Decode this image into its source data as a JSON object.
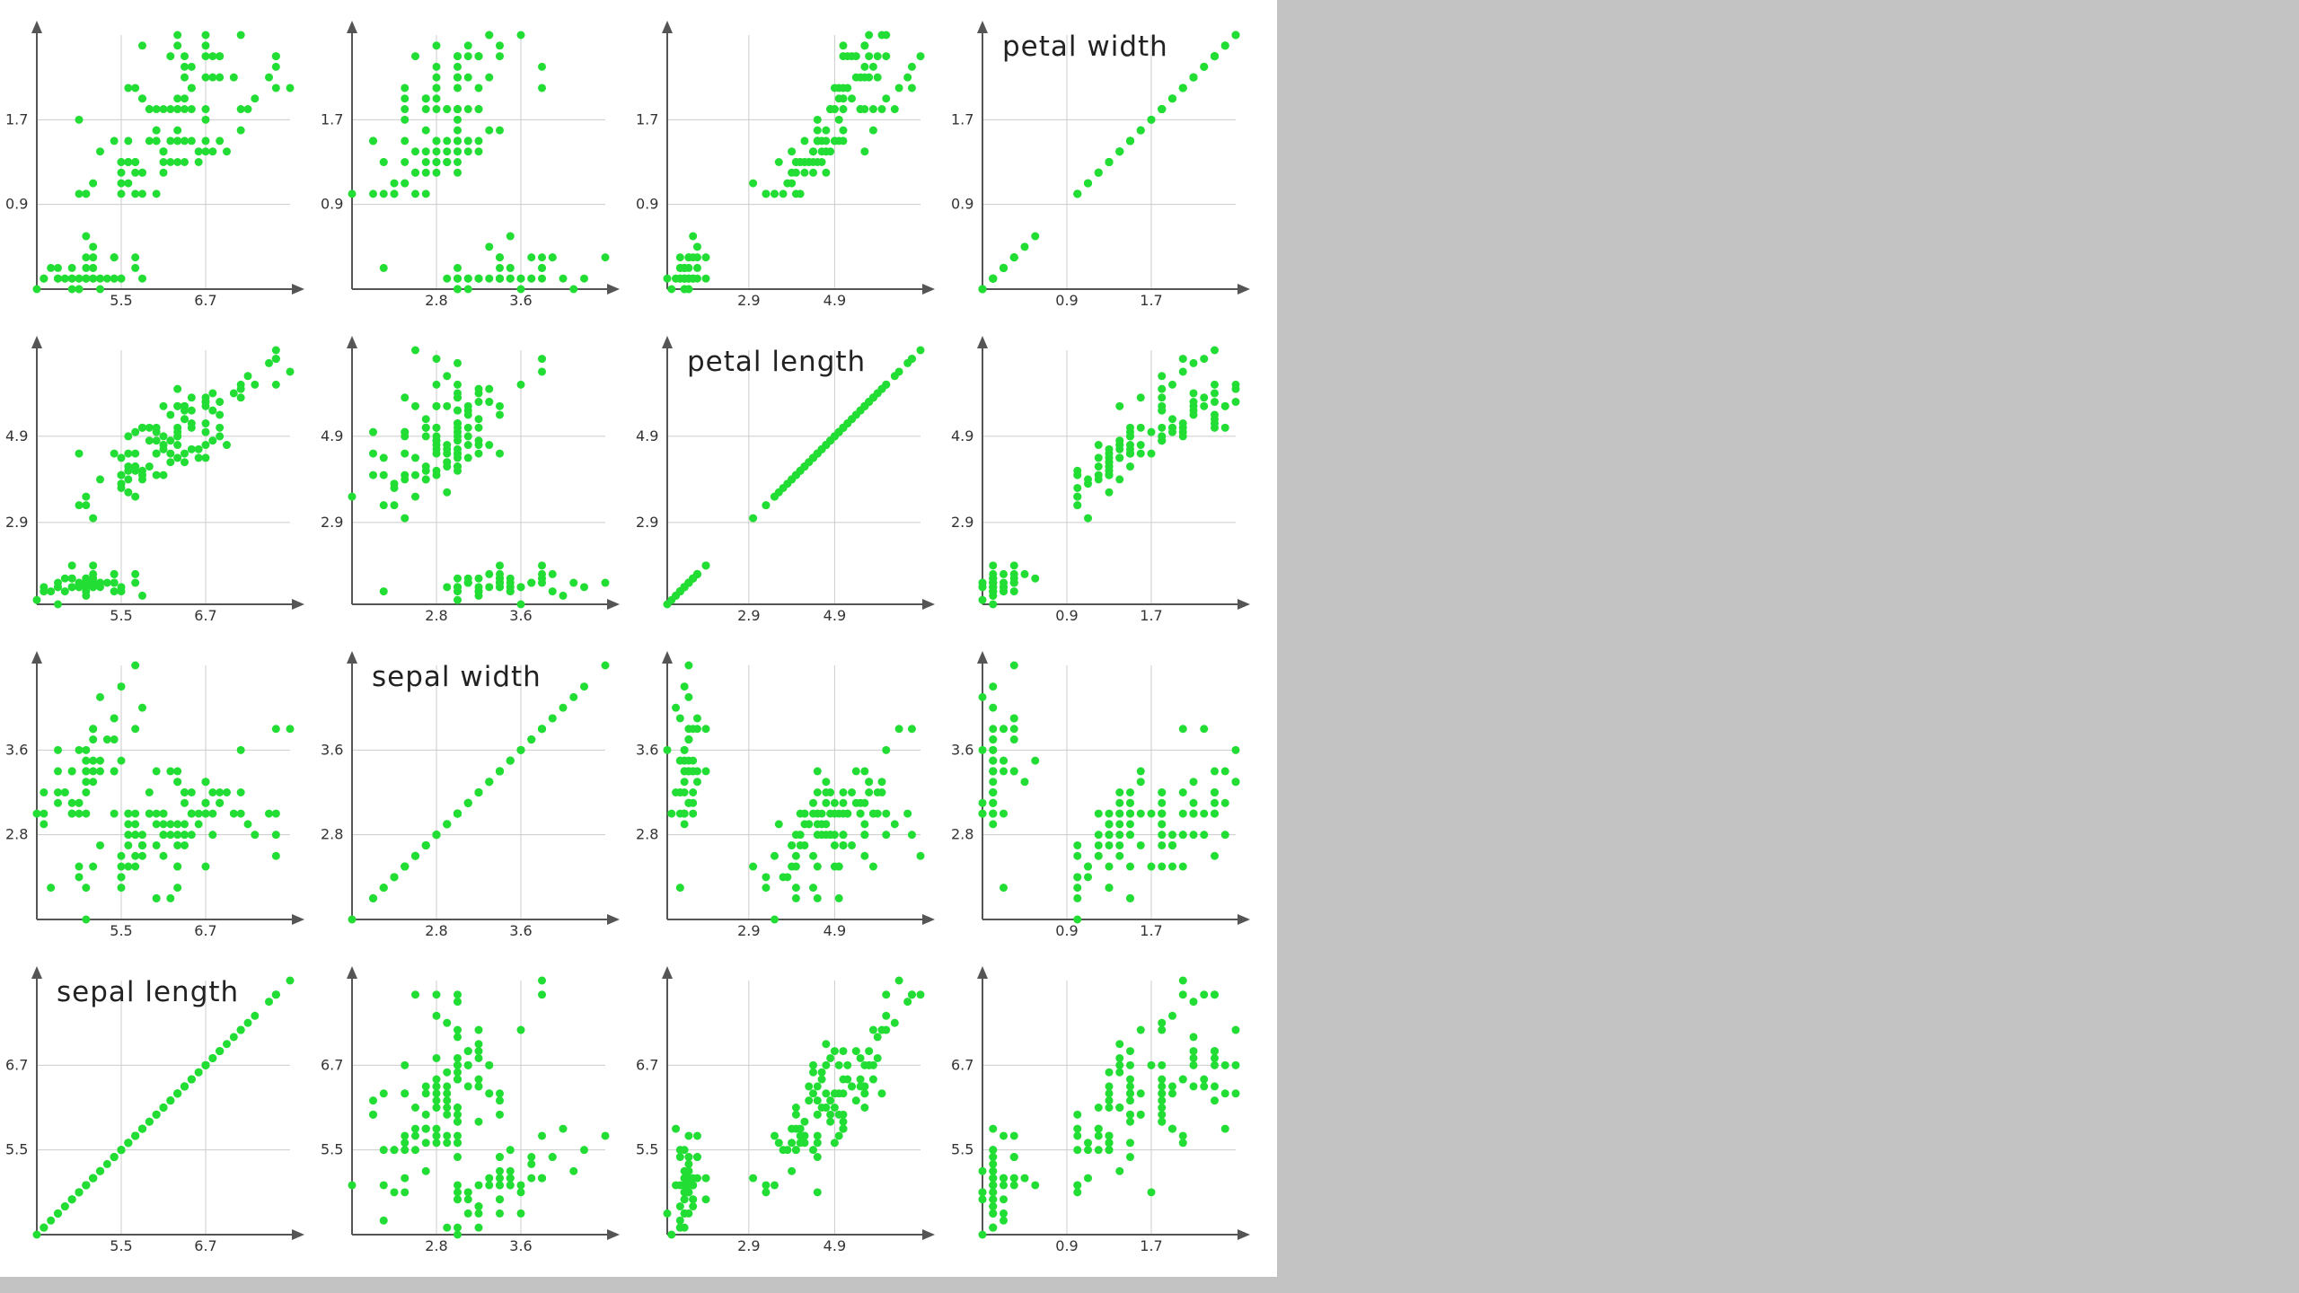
{
  "chart_data": {
    "type": "scatter",
    "layout": "scatter-plot-matrix",
    "grid": true,
    "point_color": "#22dd33",
    "axis_color": "#555555",
    "grid_color": "#cccccc",
    "variables": [
      {
        "key": "sepal_length",
        "label": "sepal length",
        "range": [
          4.3,
          7.9
        ],
        "ticks": [
          5.5,
          6.7
        ],
        "tick_labels": [
          "5.5",
          "6.7"
        ]
      },
      {
        "key": "sepal_width",
        "label": "sepal width",
        "range": [
          2.0,
          4.4
        ],
        "ticks": [
          2.8,
          3.6
        ],
        "tick_labels": [
          "2.8",
          "3.6"
        ]
      },
      {
        "key": "petal_length",
        "label": "petal length",
        "range": [
          1.0,
          6.9
        ],
        "ticks": [
          2.9,
          4.9
        ],
        "tick_labels": [
          "2.9",
          "4.9"
        ]
      },
      {
        "key": "petal_width",
        "label": "petal width",
        "range": [
          0.1,
          2.5
        ],
        "ticks": [
          0.9,
          1.7
        ],
        "tick_labels": [
          "0.9",
          "1.7"
        ]
      }
    ],
    "row_order_top_to_bottom": [
      "petal_width",
      "petal_length",
      "sepal_width",
      "sepal_length"
    ],
    "column_order_left_to_right": [
      "sepal_length",
      "sepal_width",
      "petal_length",
      "petal_width"
    ],
    "observations": [
      [
        5.1,
        3.5,
        1.4,
        0.2
      ],
      [
        4.9,
        3.0,
        1.4,
        0.2
      ],
      [
        4.7,
        3.2,
        1.3,
        0.2
      ],
      [
        4.6,
        3.1,
        1.5,
        0.2
      ],
      [
        5.0,
        3.6,
        1.4,
        0.2
      ],
      [
        5.4,
        3.9,
        1.7,
        0.4
      ],
      [
        4.6,
        3.4,
        1.4,
        0.3
      ],
      [
        5.0,
        3.4,
        1.5,
        0.2
      ],
      [
        4.4,
        2.9,
        1.4,
        0.2
      ],
      [
        4.9,
        3.1,
        1.5,
        0.1
      ],
      [
        5.4,
        3.7,
        1.5,
        0.2
      ],
      [
        4.8,
        3.4,
        1.6,
        0.2
      ],
      [
        4.8,
        3.0,
        1.4,
        0.1
      ],
      [
        4.3,
        3.0,
        1.1,
        0.1
      ],
      [
        5.8,
        4.0,
        1.2,
        0.2
      ],
      [
        5.7,
        4.4,
        1.5,
        0.4
      ],
      [
        5.4,
        3.9,
        1.3,
        0.4
      ],
      [
        5.1,
        3.5,
        1.4,
        0.3
      ],
      [
        5.7,
        3.8,
        1.7,
        0.3
      ],
      [
        5.1,
        3.8,
        1.5,
        0.3
      ],
      [
        5.4,
        3.4,
        1.7,
        0.2
      ],
      [
        5.1,
        3.7,
        1.5,
        0.4
      ],
      [
        4.6,
        3.6,
        1.0,
        0.2
      ],
      [
        5.1,
        3.3,
        1.7,
        0.5
      ],
      [
        4.8,
        3.4,
        1.9,
        0.2
      ],
      [
        5.0,
        3.0,
        1.6,
        0.2
      ],
      [
        5.0,
        3.4,
        1.6,
        0.4
      ],
      [
        5.2,
        3.5,
        1.5,
        0.2
      ],
      [
        5.2,
        3.4,
        1.4,
        0.2
      ],
      [
        4.7,
        3.2,
        1.6,
        0.2
      ],
      [
        4.8,
        3.1,
        1.6,
        0.2
      ],
      [
        5.4,
        3.4,
        1.5,
        0.4
      ],
      [
        5.2,
        4.1,
        1.5,
        0.1
      ],
      [
        5.5,
        4.2,
        1.4,
        0.2
      ],
      [
        4.9,
        3.1,
        1.5,
        0.2
      ],
      [
        5.0,
        3.2,
        1.2,
        0.2
      ],
      [
        5.5,
        3.5,
        1.3,
        0.2
      ],
      [
        4.9,
        3.6,
        1.4,
        0.1
      ],
      [
        4.4,
        3.0,
        1.3,
        0.2
      ],
      [
        5.1,
        3.4,
        1.5,
        0.2
      ],
      [
        5.0,
        3.5,
        1.3,
        0.3
      ],
      [
        4.5,
        2.3,
        1.3,
        0.3
      ],
      [
        4.4,
        3.2,
        1.3,
        0.2
      ],
      [
        5.0,
        3.5,
        1.6,
        0.6
      ],
      [
        5.1,
        3.8,
        1.9,
        0.4
      ],
      [
        4.8,
        3.0,
        1.4,
        0.3
      ],
      [
        5.1,
        3.8,
        1.6,
        0.2
      ],
      [
        4.6,
        3.2,
        1.4,
        0.2
      ],
      [
        5.3,
        3.7,
        1.5,
        0.2
      ],
      [
        5.0,
        3.3,
        1.4,
        0.2
      ],
      [
        7.0,
        3.2,
        4.7,
        1.4
      ],
      [
        6.4,
        3.2,
        4.5,
        1.5
      ],
      [
        6.9,
        3.1,
        4.9,
        1.5
      ],
      [
        5.5,
        2.3,
        4.0,
        1.3
      ],
      [
        6.5,
        2.8,
        4.6,
        1.5
      ],
      [
        5.7,
        2.8,
        4.5,
        1.3
      ],
      [
        6.3,
        3.3,
        4.7,
        1.6
      ],
      [
        4.9,
        2.4,
        3.3,
        1.0
      ],
      [
        6.6,
        2.9,
        4.6,
        1.3
      ],
      [
        5.2,
        2.7,
        3.9,
        1.4
      ],
      [
        5.0,
        2.0,
        3.5,
        1.0
      ],
      [
        5.9,
        3.0,
        4.2,
        1.5
      ],
      [
        6.0,
        2.2,
        4.0,
        1.0
      ],
      [
        6.1,
        2.9,
        4.7,
        1.4
      ],
      [
        5.6,
        2.9,
        3.6,
        1.3
      ],
      [
        6.7,
        3.1,
        4.4,
        1.4
      ],
      [
        5.6,
        3.0,
        4.5,
        1.5
      ],
      [
        5.8,
        2.7,
        4.1,
        1.0
      ],
      [
        6.2,
        2.2,
        4.5,
        1.5
      ],
      [
        5.6,
        2.5,
        3.9,
        1.1
      ],
      [
        5.9,
        3.2,
        4.8,
        1.8
      ],
      [
        6.1,
        2.8,
        4.0,
        1.3
      ],
      [
        6.3,
        2.5,
        4.9,
        1.5
      ],
      [
        6.1,
        2.8,
        4.7,
        1.2
      ],
      [
        6.4,
        2.9,
        4.3,
        1.3
      ],
      [
        6.6,
        3.0,
        4.4,
        1.4
      ],
      [
        6.8,
        2.8,
        4.8,
        1.4
      ],
      [
        6.7,
        3.0,
        5.0,
        1.7
      ],
      [
        6.0,
        2.9,
        4.5,
        1.5
      ],
      [
        5.7,
        2.6,
        3.5,
        1.0
      ],
      [
        5.5,
        2.4,
        3.8,
        1.1
      ],
      [
        5.5,
        2.4,
        3.7,
        1.0
      ],
      [
        5.8,
        2.7,
        3.9,
        1.2
      ],
      [
        6.0,
        2.7,
        5.1,
        1.6
      ],
      [
        5.4,
        3.0,
        4.5,
        1.5
      ],
      [
        6.0,
        3.4,
        4.5,
        1.6
      ],
      [
        6.7,
        3.1,
        4.7,
        1.5
      ],
      [
        6.3,
        2.3,
        4.4,
        1.3
      ],
      [
        5.6,
        3.0,
        4.1,
        1.3
      ],
      [
        5.5,
        2.5,
        4.0,
        1.3
      ],
      [
        5.5,
        2.6,
        4.4,
        1.2
      ],
      [
        6.1,
        3.0,
        4.6,
        1.4
      ],
      [
        5.8,
        2.6,
        4.0,
        1.2
      ],
      [
        5.0,
        2.3,
        3.3,
        1.0
      ],
      [
        5.6,
        2.7,
        4.2,
        1.3
      ],
      [
        5.7,
        3.0,
        4.2,
        1.2
      ],
      [
        5.7,
        2.9,
        4.2,
        1.3
      ],
      [
        6.2,
        2.9,
        4.3,
        1.3
      ],
      [
        5.1,
        2.5,
        3.0,
        1.1
      ],
      [
        5.7,
        2.8,
        4.1,
        1.3
      ],
      [
        6.3,
        3.3,
        6.0,
        2.5
      ],
      [
        5.8,
        2.7,
        5.1,
        1.9
      ],
      [
        7.1,
        3.0,
        5.9,
        2.1
      ],
      [
        6.3,
        2.9,
        5.6,
        1.8
      ],
      [
        6.5,
        3.0,
        5.8,
        2.2
      ],
      [
        7.6,
        3.0,
        6.6,
        2.1
      ],
      [
        4.9,
        2.5,
        4.5,
        1.7
      ],
      [
        7.3,
        2.9,
        6.3,
        1.8
      ],
      [
        6.7,
        2.5,
        5.8,
        1.8
      ],
      [
        7.2,
        3.6,
        6.1,
        2.5
      ],
      [
        6.5,
        3.2,
        5.1,
        2.0
      ],
      [
        6.4,
        2.7,
        5.3,
        1.9
      ],
      [
        6.8,
        3.0,
        5.5,
        2.1
      ],
      [
        5.7,
        2.5,
        5.0,
        2.0
      ],
      [
        5.8,
        2.8,
        5.1,
        2.4
      ],
      [
        6.4,
        3.2,
        5.3,
        2.3
      ],
      [
        6.5,
        3.0,
        5.5,
        1.8
      ],
      [
        7.7,
        3.8,
        6.7,
        2.2
      ],
      [
        7.7,
        2.6,
        6.9,
        2.3
      ],
      [
        6.0,
        2.2,
        5.0,
        1.5
      ],
      [
        6.9,
        3.2,
        5.7,
        2.3
      ],
      [
        5.6,
        2.8,
        4.9,
        2.0
      ],
      [
        7.7,
        2.8,
        6.7,
        2.0
      ],
      [
        6.3,
        2.7,
        4.9,
        1.8
      ],
      [
        6.7,
        3.3,
        5.7,
        2.1
      ],
      [
        7.2,
        3.2,
        6.0,
        1.8
      ],
      [
        6.2,
        2.8,
        4.8,
        1.8
      ],
      [
        6.1,
        3.0,
        4.9,
        1.8
      ],
      [
        6.4,
        2.8,
        5.6,
        2.1
      ],
      [
        7.2,
        3.0,
        5.8,
        1.6
      ],
      [
        7.4,
        2.8,
        6.1,
        1.9
      ],
      [
        7.9,
        3.8,
        6.4,
        2.0
      ],
      [
        6.4,
        2.8,
        5.6,
        2.2
      ],
      [
        6.3,
        2.8,
        5.1,
        1.5
      ],
      [
        6.1,
        2.6,
        5.6,
        1.4
      ],
      [
        7.7,
        3.0,
        6.1,
        2.3
      ],
      [
        6.3,
        3.4,
        5.6,
        2.4
      ],
      [
        6.4,
        3.1,
        5.5,
        1.8
      ],
      [
        6.0,
        3.0,
        4.8,
        1.8
      ],
      [
        6.9,
        3.1,
        5.4,
        2.1
      ],
      [
        6.7,
        3.1,
        5.6,
        2.4
      ],
      [
        6.9,
        3.1,
        5.1,
        2.3
      ],
      [
        5.8,
        2.7,
        5.1,
        1.9
      ],
      [
        6.8,
        3.2,
        5.9,
        2.3
      ],
      [
        6.7,
        3.3,
        5.7,
        2.5
      ],
      [
        6.7,
        3.0,
        5.2,
        2.3
      ],
      [
        6.3,
        2.5,
        5.0,
        1.9
      ],
      [
        6.5,
        3.0,
        5.2,
        2.0
      ],
      [
        6.2,
        3.4,
        5.4,
        2.3
      ],
      [
        5.9,
        3.0,
        5.1,
        1.8
      ]
    ]
  }
}
